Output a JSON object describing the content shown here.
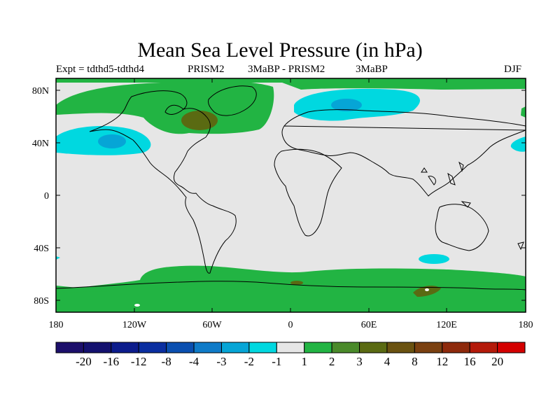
{
  "title": "Mean Sea Level Pressure (in hPa)",
  "subtitle": {
    "left": "Expt = tdthd5-tdthd4",
    "center_a": "PRISM2",
    "center_b": "3MaBP - PRISM2",
    "center_c": "3MaBP",
    "right": "DJF"
  },
  "axes": {
    "x_ticks": [
      "180",
      "120W",
      "60W",
      "0",
      "60E",
      "120E",
      "180"
    ],
    "y_ticks": [
      "80N",
      "40N",
      "0",
      "40S",
      "80S"
    ]
  },
  "colorbar": {
    "colors": [
      "#1c0f6b",
      "#14116f",
      "#0c1c8c",
      "#0a2ea0",
      "#0a4fb0",
      "#0f7bc8",
      "#06a5d6",
      "#00d8e0",
      "#e6e6e6",
      "#22b443",
      "#4a8a2a",
      "#5a6a12",
      "#6a5210",
      "#7a4010",
      "#8e2a0c",
      "#b41a0a",
      "#d40000"
    ],
    "labels": [
      "-20",
      "-16",
      "-12",
      "-8",
      "-4",
      "-3",
      "-2",
      "-1",
      "1",
      "2",
      "3",
      "4",
      "8",
      "12",
      "16",
      "20"
    ]
  },
  "map_colors": {
    "background": "#e6e6e6",
    "positive_1_2": "#22b443",
    "positive_3_4": "#5a6a12",
    "positive_4_8": "#6a5210",
    "negative_1_2": "#00d8e0",
    "negative_2_3": "#06a5d6",
    "coast": "#000000"
  }
}
